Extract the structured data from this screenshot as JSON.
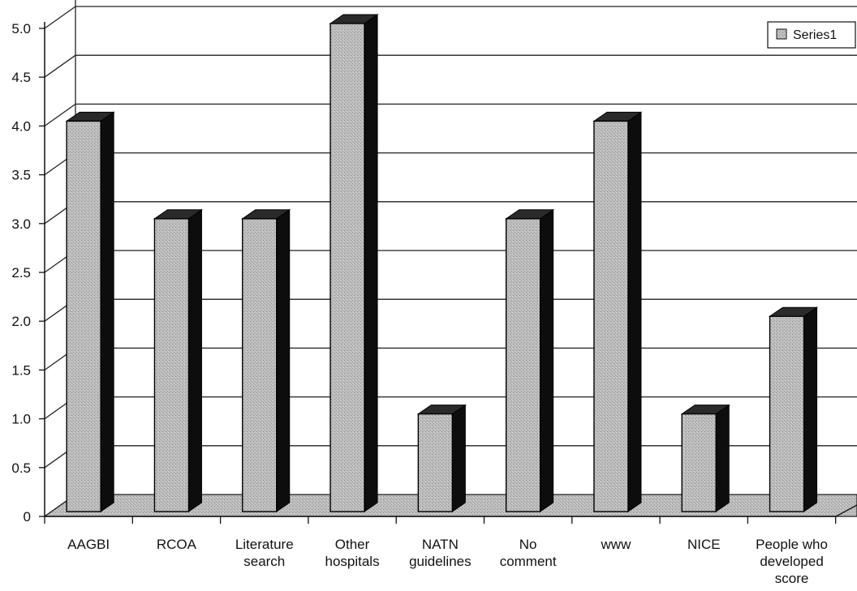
{
  "chart_data": {
    "type": "bar",
    "style": "3d-column",
    "categories": [
      "AAGBI",
      "RCOA",
      "Literature search",
      "Other hospitals",
      "NATN guidelines",
      "No comment",
      "www",
      "NICE",
      "People who developed score"
    ],
    "category_label_lines": [
      [
        "AAGBI"
      ],
      [
        "RCOA"
      ],
      [
        "Literature",
        "search"
      ],
      [
        "Other",
        "hospitals"
      ],
      [
        "NATN",
        "guidelines"
      ],
      [
        "No",
        "comment"
      ],
      [
        "www"
      ],
      [
        "NICE"
      ],
      [
        "People who",
        "developed",
        "score"
      ]
    ],
    "series": [
      {
        "name": "Series1",
        "values": [
          4.0,
          3.0,
          3.0,
          5.0,
          1.0,
          3.0,
          4.0,
          1.0,
          2.0
        ]
      }
    ],
    "y_ticks": [
      "0",
      "0.5",
      "1.0",
      "1.5",
      "2.0",
      "2.5",
      "3.0",
      "3.5",
      "4.0",
      "4.5",
      "5.0"
    ],
    "ylim": [
      0,
      5.0
    ],
    "title": "",
    "xlabel": "",
    "ylabel": "",
    "grid": true,
    "legend": "top-right",
    "colors": {
      "bar_front": "#b9b9b9",
      "bar_top": "#2a2a2a",
      "bar_side": "#0d0d0d",
      "floor": "#c4c4c4",
      "grid": "#222222"
    }
  }
}
